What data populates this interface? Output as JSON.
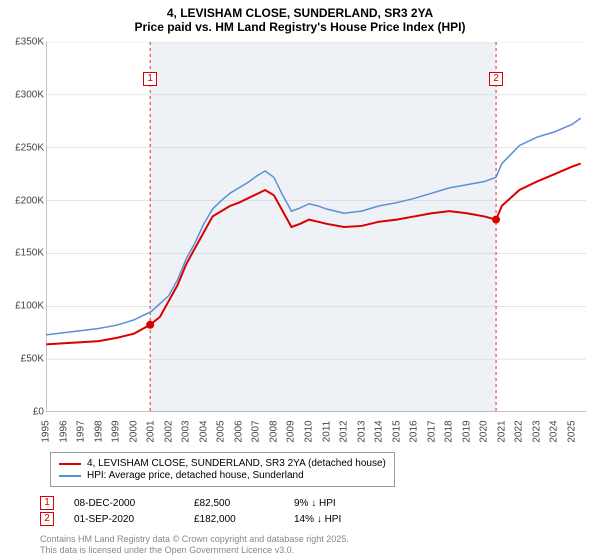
{
  "title": {
    "main": "4, LEVISHAM CLOSE, SUNDERLAND, SR3 2YA",
    "sub": "Price paid vs. HM Land Registry's House Price Index (HPI)"
  },
  "chart": {
    "type": "line",
    "background_color": "#ffffff",
    "shaded_band_color": "#eef2f6",
    "grid_color": "#cccccc",
    "ylim": [
      0,
      350000
    ],
    "ytick_step": 50000,
    "y_labels": [
      "£0",
      "£50K",
      "£100K",
      "£150K",
      "£200K",
      "£250K",
      "£300K",
      "£350K"
    ],
    "x_years": [
      1995,
      1996,
      1997,
      1998,
      1999,
      2000,
      2001,
      2002,
      2003,
      2004,
      2005,
      2006,
      2007,
      2008,
      2009,
      2010,
      2011,
      2012,
      2013,
      2014,
      2015,
      2016,
      2017,
      2018,
      2019,
      2020,
      2021,
      2022,
      2023,
      2024,
      2025
    ],
    "x_min": 1995,
    "x_max": 2025.8,
    "shaded_band_start": 2000.94,
    "shaded_band_end": 2020.67,
    "series": [
      {
        "key": "price_paid",
        "label": "4, LEVISHAM CLOSE, SUNDERLAND, SR3 2YA (detached house)",
        "color": "#d90000",
        "line_width": 2,
        "data": [
          [
            1995,
            64000
          ],
          [
            1996,
            65000
          ],
          [
            1997,
            66000
          ],
          [
            1998,
            67000
          ],
          [
            1999,
            70000
          ],
          [
            2000,
            74000
          ],
          [
            2000.94,
            82500
          ],
          [
            2001.5,
            90000
          ],
          [
            2002,
            105000
          ],
          [
            2002.5,
            120000
          ],
          [
            2003,
            140000
          ],
          [
            2003.5,
            155000
          ],
          [
            2004,
            170000
          ],
          [
            2004.5,
            185000
          ],
          [
            2005,
            190000
          ],
          [
            2005.5,
            195000
          ],
          [
            2006,
            198000
          ],
          [
            2006.5,
            202000
          ],
          [
            2007,
            206000
          ],
          [
            2007.5,
            210000
          ],
          [
            2008,
            205000
          ],
          [
            2008.5,
            190000
          ],
          [
            2009,
            175000
          ],
          [
            2009.5,
            178000
          ],
          [
            2010,
            182000
          ],
          [
            2010.5,
            180000
          ],
          [
            2011,
            178000
          ],
          [
            2012,
            175000
          ],
          [
            2013,
            176000
          ],
          [
            2014,
            180000
          ],
          [
            2015,
            182000
          ],
          [
            2016,
            185000
          ],
          [
            2017,
            188000
          ],
          [
            2018,
            190000
          ],
          [
            2019,
            188000
          ],
          [
            2020,
            185000
          ],
          [
            2020.67,
            182000
          ],
          [
            2021,
            195000
          ],
          [
            2022,
            210000
          ],
          [
            2023,
            218000
          ],
          [
            2024,
            225000
          ],
          [
            2025,
            232000
          ],
          [
            2025.5,
            235000
          ]
        ]
      },
      {
        "key": "hpi",
        "label": "HPI: Average price, detached house, Sunderland",
        "color": "#5b8fd6",
        "line_width": 1.5,
        "data": [
          [
            1995,
            73000
          ],
          [
            1996,
            75000
          ],
          [
            1997,
            77000
          ],
          [
            1998,
            79000
          ],
          [
            1999,
            82000
          ],
          [
            2000,
            87000
          ],
          [
            2001,
            95000
          ],
          [
            2002,
            110000
          ],
          [
            2002.5,
            125000
          ],
          [
            2003,
            145000
          ],
          [
            2003.5,
            160000
          ],
          [
            2004,
            178000
          ],
          [
            2004.5,
            192000
          ],
          [
            2005,
            200000
          ],
          [
            2005.5,
            207000
          ],
          [
            2006,
            212000
          ],
          [
            2006.5,
            217000
          ],
          [
            2007,
            223000
          ],
          [
            2007.5,
            228000
          ],
          [
            2008,
            222000
          ],
          [
            2008.5,
            205000
          ],
          [
            2009,
            190000
          ],
          [
            2009.5,
            193000
          ],
          [
            2010,
            197000
          ],
          [
            2010.5,
            195000
          ],
          [
            2011,
            192000
          ],
          [
            2012,
            188000
          ],
          [
            2013,
            190000
          ],
          [
            2014,
            195000
          ],
          [
            2015,
            198000
          ],
          [
            2016,
            202000
          ],
          [
            2017,
            207000
          ],
          [
            2018,
            212000
          ],
          [
            2019,
            215000
          ],
          [
            2020,
            218000
          ],
          [
            2020.67,
            222000
          ],
          [
            2021,
            235000
          ],
          [
            2022,
            252000
          ],
          [
            2023,
            260000
          ],
          [
            2024,
            265000
          ],
          [
            2025,
            272000
          ],
          [
            2025.5,
            278000
          ]
        ]
      }
    ],
    "sale_markers": [
      {
        "n": "1",
        "year": 2000.94,
        "price": 82500,
        "color": "#d90000"
      },
      {
        "n": "2",
        "year": 2020.67,
        "price": 182000,
        "color": "#d90000"
      }
    ]
  },
  "legend": {
    "items": [
      {
        "color": "#d90000",
        "label": "4, LEVISHAM CLOSE, SUNDERLAND, SR3 2YA (detached house)"
      },
      {
        "color": "#5b8fd6",
        "label": "HPI: Average price, detached house, Sunderland"
      }
    ]
  },
  "sales_table": [
    {
      "n": "1",
      "color": "#d90000",
      "date": "08-DEC-2000",
      "price": "£82,500",
      "delta": "9% ↓ HPI"
    },
    {
      "n": "2",
      "color": "#d90000",
      "date": "01-SEP-2020",
      "price": "£182,000",
      "delta": "14% ↓ HPI"
    }
  ],
  "attribution": {
    "line1": "Contains HM Land Registry data © Crown copyright and database right 2025.",
    "line2": "This data is licensed under the Open Government Licence v3.0."
  }
}
